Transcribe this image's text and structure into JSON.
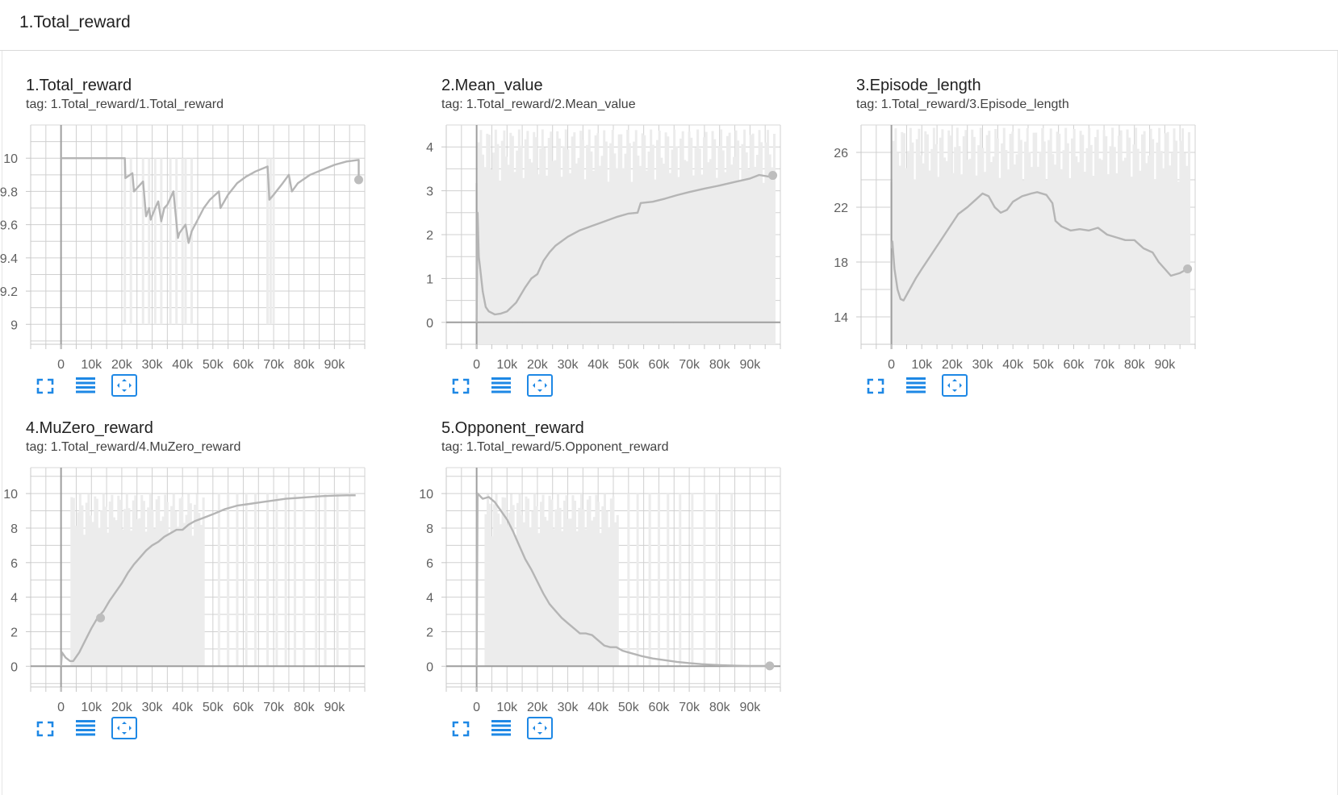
{
  "group": {
    "title": "1.Total_reward"
  },
  "tag_prefix": "tag:",
  "colors": {
    "line": "#b5b5b5",
    "raw": "#ececec",
    "grid": "#d0d0d0",
    "axis": "#9e9e9e",
    "icon": "#1e88e5"
  },
  "toolbar_icons": [
    "fullscreen-icon",
    "toggle-y-log-icon",
    "fit-domain-icon"
  ],
  "chart_data": [
    {
      "type": "line",
      "title": "1.Total_reward",
      "tag": "1.Total_reward/1.Total_reward",
      "xlim": [
        -10000,
        100000
      ],
      "ylim": [
        8.88,
        10.2
      ],
      "xticks": [
        0,
        10000,
        20000,
        30000,
        40000,
        50000,
        60000,
        70000,
        80000,
        90000
      ],
      "xtick_labels": [
        "0",
        "10k",
        "20k",
        "30k",
        "40k",
        "50k",
        "60k",
        "70k",
        "80k",
        "90k"
      ],
      "yticks": [
        9,
        9.2,
        9.4,
        9.6,
        9.8,
        10
      ],
      "ytick_labels": [
        "9",
        "9.2",
        "9.4",
        "9.6",
        "9.8",
        "10"
      ],
      "smoothed": {
        "x": [
          0,
          21000,
          21200,
          23500,
          24000,
          27000,
          28000,
          29000,
          29500,
          31000,
          32000,
          33000,
          34000,
          35000,
          37000,
          38500,
          39000,
          41000,
          42000,
          43000,
          45000,
          47000,
          49000,
          52000,
          52500,
          55000,
          58000,
          61000,
          64000,
          68000,
          68600,
          70000,
          73000,
          75000,
          76000,
          78000,
          82000,
          86000,
          90000,
          94000,
          98000,
          98000
        ],
        "y": [
          10,
          10,
          9.88,
          9.91,
          9.8,
          9.86,
          9.65,
          9.7,
          9.63,
          9.7,
          9.74,
          9.62,
          9.7,
          9.72,
          9.8,
          9.52,
          9.55,
          9.6,
          9.49,
          9.56,
          9.63,
          9.7,
          9.75,
          9.8,
          9.7,
          9.78,
          9.85,
          9.89,
          9.92,
          9.95,
          9.75,
          9.78,
          9.85,
          9.9,
          9.8,
          9.85,
          9.9,
          9.93,
          9.96,
          9.98,
          9.99,
          9.87
        ]
      },
      "raw_spikes_x": [
        21000,
        23000,
        27000,
        29000,
        31000,
        33000,
        36000,
        38000,
        40000,
        41000,
        43000,
        68000,
        69000,
        70000
      ],
      "raw_spikes_y": [
        9.0,
        9.0,
        9.0,
        9.0,
        9.0,
        9.0,
        9.0,
        9.0,
        9.0,
        9.0,
        9.0,
        9.0,
        9.0,
        9.0
      ],
      "marker": [
        98000,
        9.87
      ]
    },
    {
      "type": "line",
      "title": "2.Mean_value",
      "tag": "1.Total_reward/2.Mean_value",
      "xlim": [
        -10000,
        100000
      ],
      "ylim": [
        -0.5,
        4.5
      ],
      "xticks": [
        0,
        10000,
        20000,
        30000,
        40000,
        50000,
        60000,
        70000,
        80000,
        90000
      ],
      "xtick_labels": [
        "0",
        "10k",
        "20k",
        "30k",
        "40k",
        "50k",
        "60k",
        "70k",
        "80k",
        "90k"
      ],
      "yticks": [
        0,
        1,
        2,
        3,
        4
      ],
      "ytick_labels": [
        "0",
        "1",
        "2",
        "3",
        "4"
      ],
      "smoothed": {
        "x": [
          0,
          300,
          700,
          1200,
          2000,
          3000,
          4000,
          6000,
          8000,
          10000,
          13000,
          16000,
          18000,
          20000,
          22000,
          24000,
          26000,
          30000,
          34000,
          38000,
          42000,
          46000,
          50000,
          53000,
          54000,
          58000,
          62000,
          66000,
          70000,
          75000,
          80000,
          85000,
          90000,
          93000,
          96500,
          97500
        ],
        "y": [
          0,
          2.5,
          1.5,
          1.2,
          0.7,
          0.35,
          0.25,
          0.18,
          0.2,
          0.25,
          0.45,
          0.8,
          1.0,
          1.1,
          1.4,
          1.6,
          1.75,
          1.95,
          2.1,
          2.2,
          2.3,
          2.4,
          2.48,
          2.5,
          2.72,
          2.75,
          2.82,
          2.9,
          2.97,
          3.05,
          3.12,
          3.2,
          3.28,
          3.36,
          3.32,
          3.35
        ]
      },
      "raw_band": {
        "x0": 0,
        "x1": 98000,
        "y0": -0.5,
        "y1": 4.4
      },
      "marker": [
        97500,
        3.35
      ]
    },
    {
      "type": "line",
      "title": "3.Episode_length",
      "tag": "1.Total_reward/3.Episode_length",
      "xlim": [
        -10000,
        100000
      ],
      "ylim": [
        12,
        28
      ],
      "xticks": [
        0,
        10000,
        20000,
        30000,
        40000,
        50000,
        60000,
        70000,
        80000,
        90000
      ],
      "xtick_labels": [
        "0",
        "10k",
        "20k",
        "30k",
        "40k",
        "50k",
        "60k",
        "70k",
        "80k",
        "90k"
      ],
      "yticks": [
        14,
        18,
        22,
        26
      ],
      "ytick_labels": [
        "14",
        "18",
        "22",
        "26"
      ],
      "smoothed": {
        "x": [
          0,
          300,
          1000,
          2000,
          3000,
          4000,
          6000,
          8000,
          10000,
          13000,
          16000,
          19000,
          22000,
          25000,
          28000,
          30000,
          32000,
          34000,
          36000,
          38000,
          40000,
          43000,
          46000,
          48000,
          51000,
          53000,
          54000,
          56000,
          59000,
          62000,
          65000,
          68000,
          71000,
          74000,
          77000,
          80000,
          83000,
          86000,
          88000,
          90000,
          92000,
          95000,
          97500
        ],
        "y": [
          19,
          19.5,
          17.5,
          16,
          15.3,
          15.2,
          16,
          16.8,
          17.5,
          18.5,
          19.5,
          20.5,
          21.5,
          22,
          22.6,
          23,
          22.8,
          22,
          21.6,
          21.8,
          22.4,
          22.8,
          23,
          23.1,
          22.9,
          22.3,
          21,
          20.6,
          20.3,
          20.4,
          20.3,
          20.5,
          20,
          19.8,
          19.6,
          19.6,
          19,
          18.7,
          18,
          17.5,
          17,
          17.2,
          17.5
        ]
      },
      "raw_band": {
        "x0": 0,
        "x1": 98000,
        "y0": 12,
        "y1": 27.8
      },
      "marker": [
        97500,
        17.5
      ]
    },
    {
      "type": "line",
      "title": "4.MuZero_reward",
      "tag": "1.Total_reward/4.MuZero_reward",
      "xlim": [
        -10000,
        100000
      ],
      "ylim": [
        -1.2,
        11.5
      ],
      "xticks": [
        0,
        10000,
        20000,
        30000,
        40000,
        50000,
        60000,
        70000,
        80000,
        90000
      ],
      "xtick_labels": [
        "0",
        "10k",
        "20k",
        "30k",
        "40k",
        "50k",
        "60k",
        "70k",
        "80k",
        "90k"
      ],
      "yticks": [
        0,
        2,
        4,
        6,
        8,
        10
      ],
      "ytick_labels": [
        "0",
        "2",
        "4",
        "6",
        "8",
        "10"
      ],
      "smoothed": {
        "x": [
          0,
          300,
          1500,
          3000,
          4000,
          6000,
          8000,
          10000,
          12000,
          14000,
          16000,
          18000,
          20000,
          22000,
          24000,
          26000,
          28000,
          30000,
          32000,
          34000,
          36000,
          38000,
          40000,
          42000,
          44000,
          47000,
          50000,
          54000,
          58000,
          62000,
          66000,
          70000,
          74000,
          78000,
          82000,
          86000,
          90000,
          94000,
          97000
        ],
        "y": [
          0,
          0.8,
          0.5,
          0.3,
          0.3,
          0.8,
          1.5,
          2.2,
          2.8,
          3.2,
          3.8,
          4.3,
          4.8,
          5.4,
          5.9,
          6.3,
          6.7,
          7.0,
          7.2,
          7.5,
          7.7,
          7.9,
          7.9,
          8.2,
          8.4,
          8.6,
          8.8,
          9.1,
          9.3,
          9.4,
          9.5,
          9.6,
          9.7,
          9.75,
          9.8,
          9.85,
          9.88,
          9.9,
          9.9
        ]
      },
      "raw_band": {
        "x0": 3500,
        "x1": 47000,
        "y0": 0,
        "y1": 10
      },
      "raw_spikes_x": [
        52000,
        55000,
        58000,
        61000,
        64000,
        68000,
        71000,
        74000,
        77000,
        80000,
        84000,
        87000,
        91000,
        95000
      ],
      "raw_spikes_y": [
        0,
        0,
        0,
        0,
        0,
        0,
        0,
        0,
        0,
        0,
        0,
        0,
        0,
        0
      ],
      "marker": [
        13000,
        2.8
      ]
    },
    {
      "type": "line",
      "title": "5.Opponent_reward",
      "tag": "1.Total_reward/5.Opponent_reward",
      "xlim": [
        -10000,
        100000
      ],
      "ylim": [
        -1.2,
        11.5
      ],
      "xticks": [
        0,
        10000,
        20000,
        30000,
        40000,
        50000,
        60000,
        70000,
        80000,
        90000
      ],
      "xtick_labels": [
        "0",
        "10k",
        "20k",
        "30k",
        "40k",
        "50k",
        "60k",
        "70k",
        "80k",
        "90k"
      ],
      "yticks": [
        0,
        2,
        4,
        6,
        8,
        10
      ],
      "ytick_labels": [
        "0",
        "2",
        "4",
        "6",
        "8",
        "10"
      ],
      "smoothed": {
        "x": [
          0,
          300,
          2000,
          4000,
          6000,
          8000,
          10000,
          12000,
          14000,
          16000,
          18000,
          20000,
          22000,
          24000,
          26000,
          28000,
          30000,
          32000,
          34000,
          36000,
          38000,
          40000,
          42000,
          44000,
          46000,
          48000,
          50000,
          54000,
          58000,
          62000,
          66000,
          70000,
          74000,
          78000,
          82000,
          86000,
          90000,
          94000,
          97000
        ],
        "y": [
          0,
          10,
          9.7,
          9.8,
          9.5,
          9.0,
          8.5,
          7.8,
          7.0,
          6.2,
          5.6,
          4.9,
          4.2,
          3.6,
          3.2,
          2.8,
          2.5,
          2.2,
          1.9,
          1.9,
          1.8,
          1.5,
          1.2,
          1.1,
          1.1,
          0.9,
          0.8,
          0.6,
          0.45,
          0.35,
          0.25,
          0.18,
          0.12,
          0.08,
          0.05,
          0.03,
          0.02,
          0.02,
          0.02
        ]
      },
      "raw_band": {
        "x0": 3000,
        "x1": 47000,
        "y0": 0,
        "y1": 10
      },
      "raw_spikes_x": [
        50000,
        53000,
        57000,
        60000,
        63000,
        67000,
        71000,
        75000,
        79000,
        84000
      ],
      "raw_spikes_y": [
        10,
        10,
        10,
        10,
        10,
        10,
        10,
        10,
        10,
        10
      ],
      "marker": [
        96500,
        0.02
      ]
    }
  ]
}
